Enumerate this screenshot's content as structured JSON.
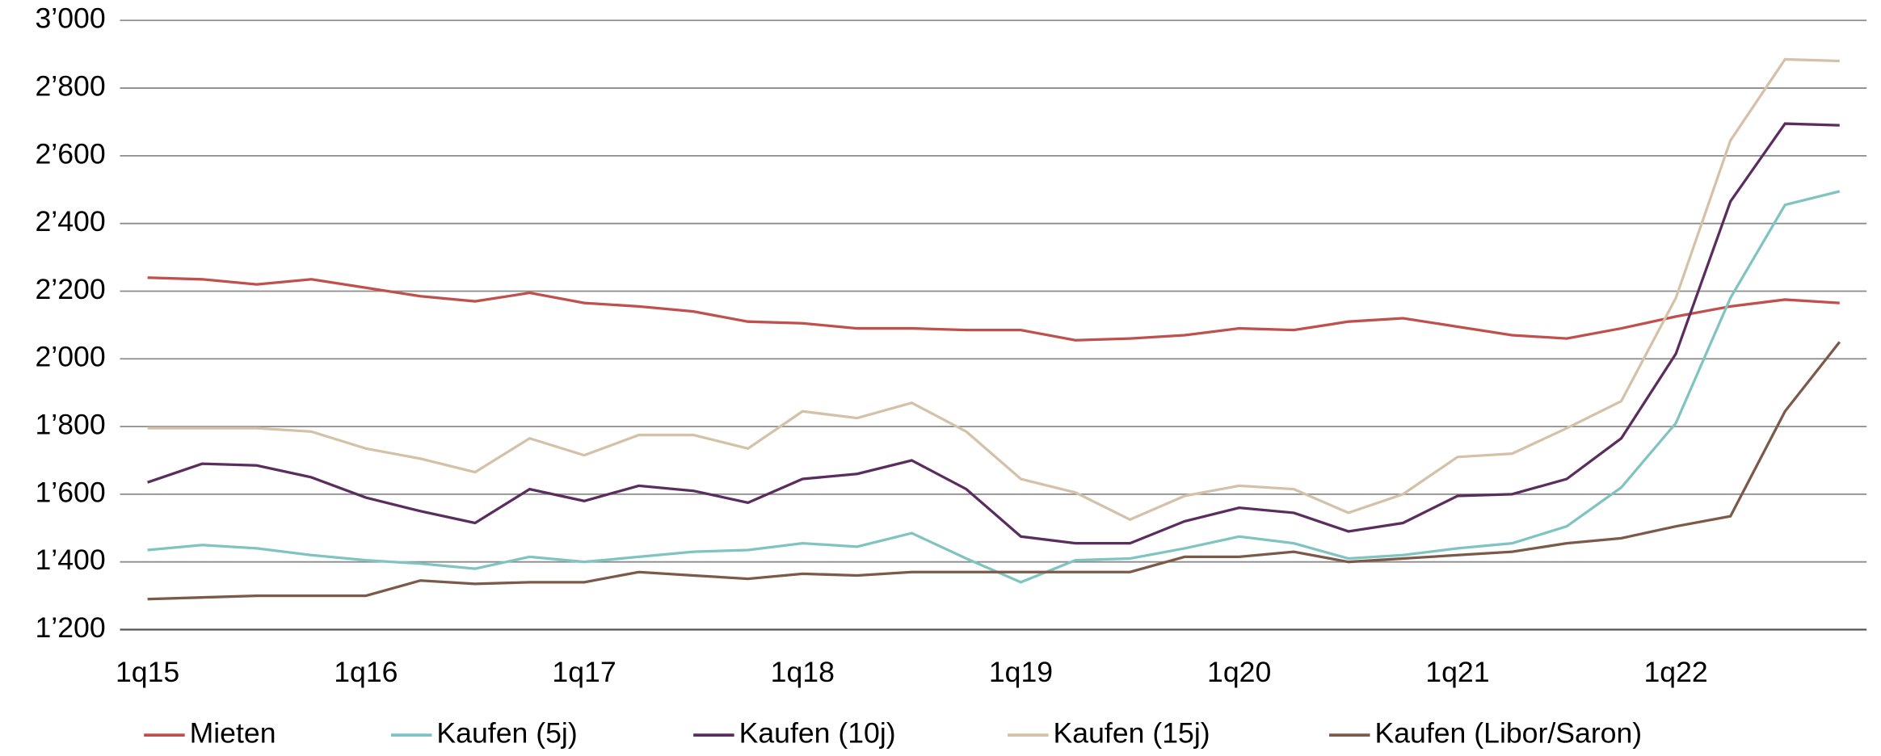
{
  "chart_data": {
    "type": "line",
    "categories": [
      "1q15",
      null,
      null,
      null,
      "1q16",
      null,
      null,
      null,
      "1q17",
      null,
      null,
      null,
      "1q18",
      null,
      null,
      null,
      "1q19",
      null,
      null,
      null,
      "1q20",
      null,
      null,
      null,
      "1q21",
      null,
      null,
      null,
      "1q22",
      null,
      null,
      null
    ],
    "series": [
      {
        "name": "Mieten",
        "color": "#c0504d",
        "values": [
          2240,
          2235,
          2220,
          2235,
          2210,
          2185,
          2170,
          2195,
          2165,
          2155,
          2140,
          2110,
          2105,
          2090,
          2090,
          2085,
          2085,
          2055,
          2060,
          2070,
          2090,
          2085,
          2110,
          2120,
          2095,
          2070,
          2060,
          2090,
          2125,
          2155,
          2175,
          2165
        ]
      },
      {
        "name": "Kaufen (5j)",
        "color": "#7fc4c0",
        "values": [
          1435,
          1450,
          1440,
          1420,
          1405,
          1395,
          1380,
          1415,
          1400,
          1415,
          1430,
          1435,
          1455,
          1445,
          1485,
          1410,
          1340,
          1405,
          1410,
          1440,
          1475,
          1455,
          1410,
          1420,
          1440,
          1455,
          1505,
          1620,
          1810,
          2180,
          2455,
          2495
        ]
      },
      {
        "name": "Kaufen (10j)",
        "color": "#5b2d5e",
        "values": [
          1635,
          1690,
          1685,
          1650,
          1590,
          1550,
          1515,
          1615,
          1580,
          1625,
          1610,
          1575,
          1645,
          1660,
          1700,
          1615,
          1475,
          1455,
          1455,
          1520,
          1560,
          1545,
          1490,
          1515,
          1595,
          1600,
          1645,
          1765,
          2015,
          2465,
          2695,
          2690
        ]
      },
      {
        "name": "Kaufen (15j)",
        "color": "#d4c2a8",
        "values": [
          1795,
          1795,
          1795,
          1785,
          1735,
          1705,
          1665,
          1765,
          1715,
          1775,
          1775,
          1735,
          1845,
          1825,
          1870,
          1785,
          1645,
          1605,
          1525,
          1595,
          1625,
          1615,
          1545,
          1600,
          1710,
          1720,
          1795,
          1875,
          2180,
          2645,
          2885,
          2880
        ]
      },
      {
        "name": "Kaufen (Libor/Saron)",
        "color": "#7b5a4a",
        "values": [
          1290,
          1295,
          1300,
          1300,
          1300,
          1345,
          1335,
          1340,
          1340,
          1370,
          1360,
          1350,
          1365,
          1360,
          1370,
          1370,
          1370,
          1370,
          1370,
          1415,
          1415,
          1430,
          1400,
          1410,
          1420,
          1430,
          1455,
          1470,
          1505,
          1535,
          1845,
          2050
        ]
      }
    ],
    "ylim": [
      1200,
      3000
    ],
    "yticks": [
      {
        "value": 1200,
        "label": "1’200"
      },
      {
        "value": 1400,
        "label": "1’400"
      },
      {
        "value": 1600,
        "label": "1’600"
      },
      {
        "value": 1800,
        "label": "1’800"
      },
      {
        "value": 2000,
        "label": "2’000"
      },
      {
        "value": 2200,
        "label": "2’200"
      },
      {
        "value": 2400,
        "label": "2’400"
      },
      {
        "value": 2600,
        "label": "2’600"
      },
      {
        "value": 2800,
        "label": "2’800"
      },
      {
        "value": 3000,
        "label": "3’000"
      }
    ],
    "grid": true,
    "legend": "bottom"
  }
}
